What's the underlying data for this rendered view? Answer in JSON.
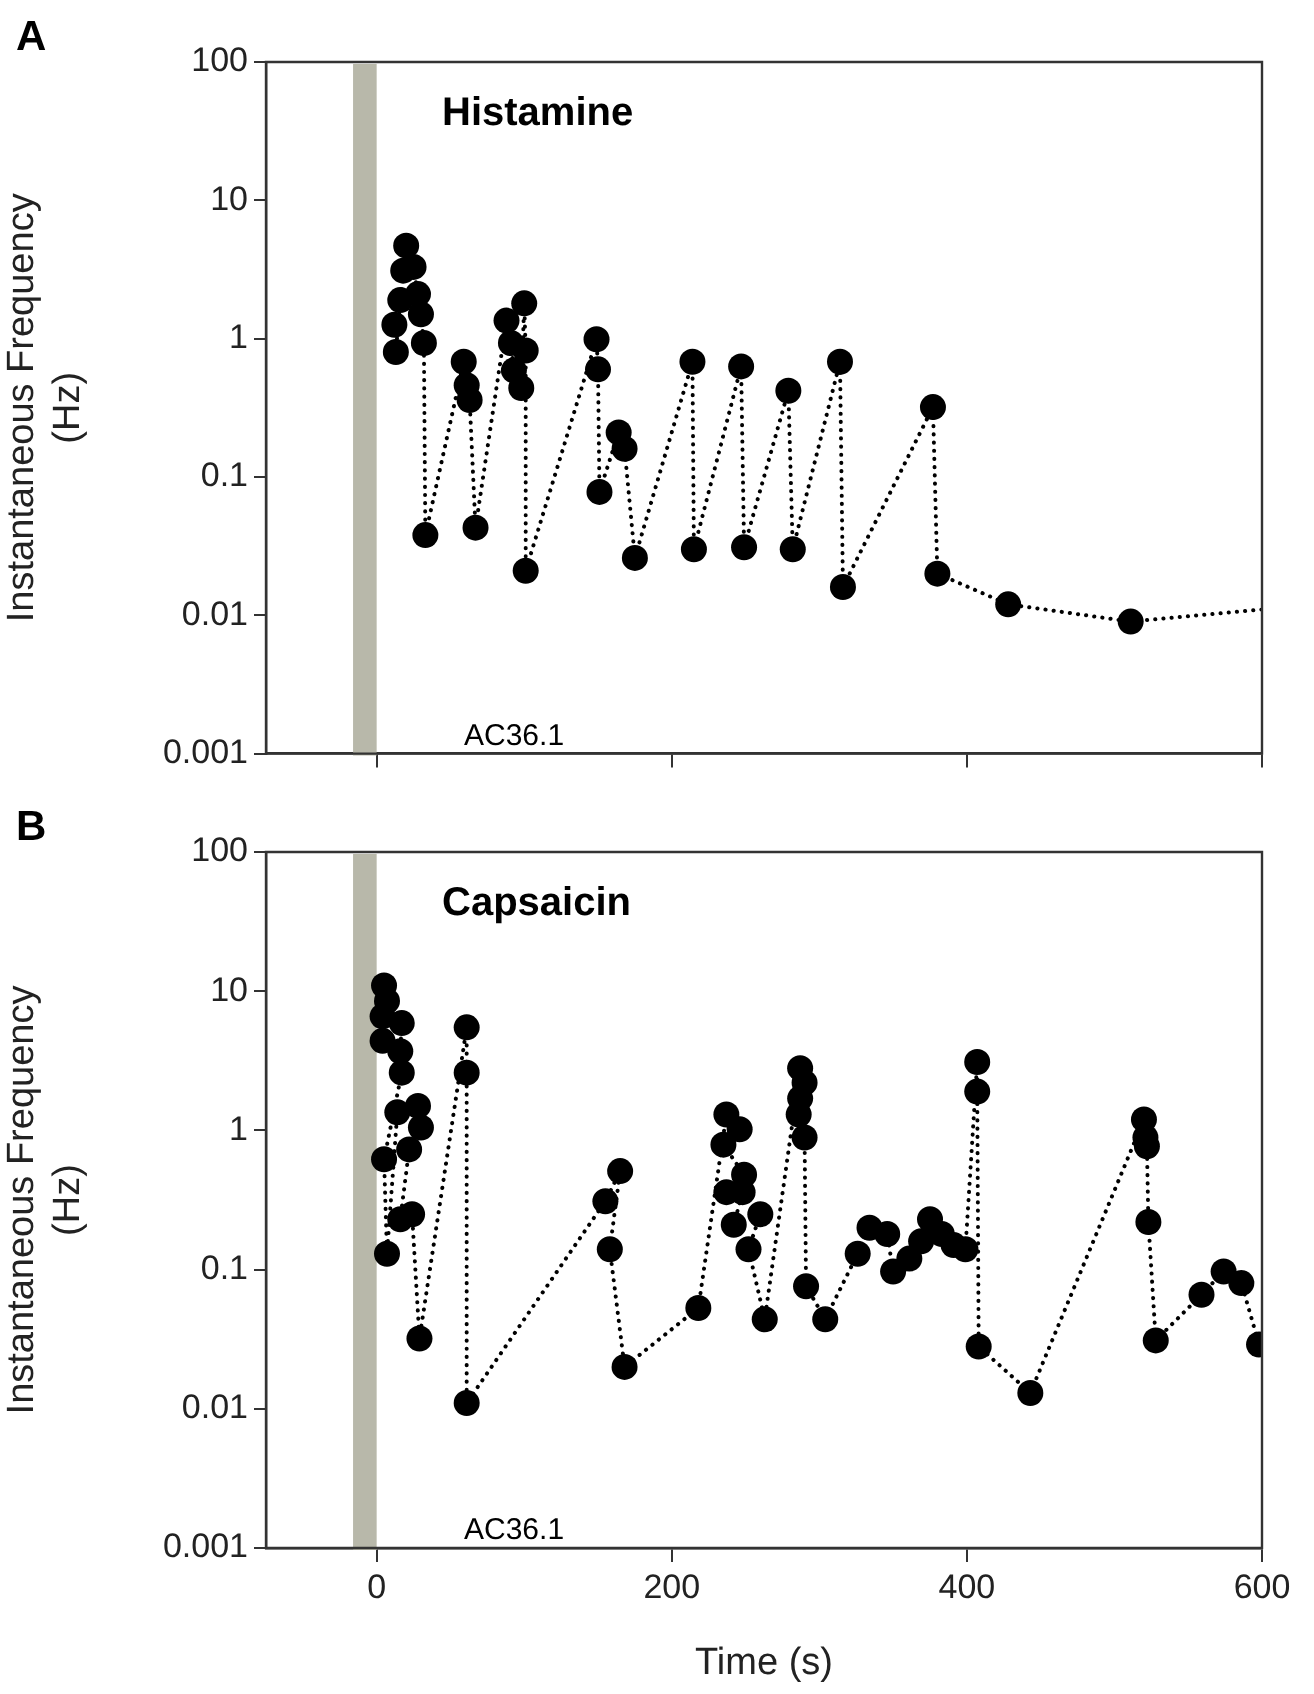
{
  "chart_data": [
    {
      "type": "line",
      "title": "Histamine",
      "ylabel": "Instantaneous Frequency (Hz)",
      "annotations": [
        "A",
        "AC36.1"
      ],
      "log": "y",
      "grid": false,
      "marker": "circle",
      "line_style": "dotted",
      "tick_labels": "y",
      "xlim": [
        -75,
        600
      ],
      "xticks": [
        {
          "value": 0,
          "label": null
        },
        {
          "value": 200,
          "label": null
        },
        {
          "value": 400,
          "label": null
        },
        {
          "value": 600,
          "label": null
        }
      ],
      "ylim": [
        0.001,
        100
      ],
      "yticks": [
        0.001,
        0.01,
        0.1,
        1,
        10,
        100
      ],
      "bands": [
        {
          "axis": "x",
          "from": -16,
          "to": 0,
          "color": "#b8b8aa"
        }
      ],
      "series": [
        {
          "color": "#000000",
          "x": [
            12,
            13,
            16,
            18,
            20,
            25,
            28,
            30,
            32,
            33,
            59,
            61,
            63,
            67,
            88,
            91,
            93,
            98,
            100,
            101,
            101,
            149,
            150,
            151,
            164,
            168,
            175,
            214,
            215,
            247,
            249,
            279,
            282,
            314,
            316,
            377,
            380,
            428,
            511
          ],
          "values": [
            1.26,
            0.8,
            1.9,
            3.1,
            4.7,
            3.3,
            2.1,
            1.5,
            0.93,
            0.038,
            0.68,
            0.46,
            0.36,
            0.043,
            1.35,
            0.93,
            0.59,
            0.44,
            1.8,
            0.82,
            0.021,
            0.99,
            0.6,
            0.078,
            0.21,
            0.16,
            0.026,
            0.68,
            0.03,
            0.63,
            0.031,
            0.42,
            0.03,
            0.68,
            0.016,
            0.32,
            0.02,
            0.012,
            0.009
          ]
        },
        {
          "color": "#000000",
          "marker": "none",
          "x": [
            511,
            600
          ],
          "values": [
            0.009,
            0.011
          ]
        }
      ]
    },
    {
      "type": "line",
      "title": "Capsaicin",
      "xlabel": "Time (s)",
      "ylabel": "Instantaneous Frequency (Hz)",
      "annotations": [
        "B",
        "AC36.1"
      ],
      "log": "y",
      "grid": false,
      "marker": "circle",
      "line_style": "dotted",
      "xlim": [
        -75,
        600
      ],
      "xticks": [
        0,
        200,
        400,
        600
      ],
      "ylim": [
        0.001,
        100
      ],
      "yticks": [
        0.001,
        0.01,
        0.1,
        1,
        10,
        100
      ],
      "bands": [
        {
          "axis": "x",
          "from": -16,
          "to": 0,
          "color": "#b8b8aa"
        }
      ],
      "series": [
        {
          "color": "#000000",
          "x": [
            4,
            5,
            7,
            4,
            17,
            16,
            17,
            5,
            7,
            14,
            28,
            30,
            22,
            16,
            24,
            29,
            61,
            61,
            61,
            155,
            165,
            158,
            168,
            218,
            237,
            246,
            235,
            249,
            237,
            248,
            242,
            260,
            252,
            263,
            287,
            290,
            287,
            286,
            290,
            291,
            304,
            326,
            334,
            346,
            350,
            361,
            369,
            375,
            383,
            391,
            399,
            407,
            407,
            408,
            443,
            520,
            521,
            522,
            523,
            528,
            559,
            574,
            586,
            598
          ],
          "values": [
            4.4,
            11,
            8.5,
            6.6,
            5.9,
            3.7,
            2.6,
            0.62,
            0.13,
            1.35,
            1.5,
            1.05,
            0.73,
            0.23,
            0.25,
            0.032,
            5.5,
            2.6,
            0.011,
            0.31,
            0.51,
            0.14,
            0.02,
            0.053,
            1.3,
            1.02,
            0.79,
            0.48,
            0.36,
            0.36,
            0.21,
            0.25,
            0.14,
            0.044,
            2.8,
            2.2,
            1.7,
            1.3,
            0.89,
            0.076,
            0.044,
            0.13,
            0.2,
            0.18,
            0.097,
            0.12,
            0.16,
            0.23,
            0.18,
            0.15,
            0.14,
            3.1,
            1.9,
            0.028,
            0.013,
            1.2,
            0.89,
            0.77,
            0.22,
            0.031,
            0.066,
            0.097,
            0.08,
            0.029
          ]
        }
      ]
    }
  ]
}
